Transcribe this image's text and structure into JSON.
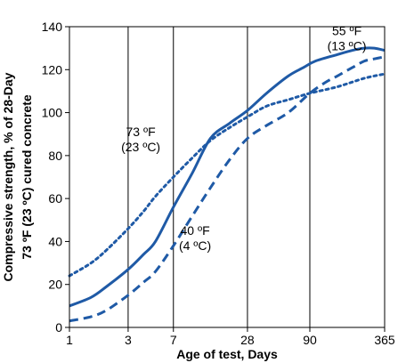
{
  "chart_data": {
    "type": "line",
    "title": "",
    "xlabel": "Age of test, Days",
    "ylabel_line1": "Compressive strength, % of 28-Day",
    "ylabel_line2": "73 ºF (23 ºC) cured concrete",
    "x_scale": "log",
    "x_ticks": [
      1,
      3,
      7,
      28,
      90,
      365
    ],
    "x_tick_labels": [
      "1",
      "3",
      "7",
      "28",
      "90",
      "365"
    ],
    "xlim": [
      1,
      365
    ],
    "ylim": [
      0,
      140
    ],
    "y_ticks": [
      0,
      20,
      40,
      60,
      80,
      100,
      120,
      140
    ],
    "y_tick_labels": [
      "0",
      "20",
      "40",
      "60",
      "80",
      "100",
      "120",
      "140"
    ],
    "grid": "vertical lines at x ticks",
    "color": "#1f5aa6",
    "series": [
      {
        "name": "55 ºF (13 ºC)",
        "dash": "solid",
        "x": [
          1,
          1.5,
          2,
          3,
          4,
          5,
          7,
          10,
          14,
          20,
          28,
          40,
          60,
          80,
          100,
          150,
          200,
          250,
          300,
          365
        ],
        "y": [
          10,
          14,
          19,
          27,
          34,
          40,
          56,
          72,
          88,
          95,
          101,
          109,
          117,
          121,
          124,
          127,
          129,
          130,
          130,
          129
        ]
      },
      {
        "name": "73 ºF (23 ºC)",
        "dash": "dotted",
        "x": [
          1,
          1.5,
          2,
          3,
          4,
          5,
          7,
          10,
          14,
          20,
          28,
          40,
          60,
          90,
          150,
          250,
          365
        ],
        "y": [
          24,
          30,
          36,
          46,
          54,
          61,
          70,
          79,
          87,
          93,
          98,
          103,
          106,
          109,
          112,
          116,
          118
        ]
      },
      {
        "name": "40 ºF (4 ºC)",
        "dash": "dashed",
        "x": [
          1,
          1.5,
          2,
          3,
          4,
          5,
          7,
          10,
          14,
          20,
          28,
          40,
          60,
          90,
          120,
          150,
          200,
          250,
          300,
          365
        ],
        "y": [
          3,
          5,
          8,
          15,
          21,
          26,
          38,
          52,
          65,
          78,
          88,
          94,
          100,
          109,
          114,
          117,
          121,
          124,
          125,
          126
        ]
      }
    ],
    "annotations": [
      {
        "series": 0,
        "lines": [
          "55 ºF",
          "(13 ºC)"
        ],
        "x": 180,
        "y": 136
      },
      {
        "series": 1,
        "lines": [
          "73 ºF",
          "(23 ºC)"
        ],
        "x": 3.8,
        "y": 89
      },
      {
        "series": 2,
        "lines": [
          "40 ºF",
          "(4 ºC)"
        ],
        "x": 10.5,
        "y": 43
      }
    ]
  }
}
